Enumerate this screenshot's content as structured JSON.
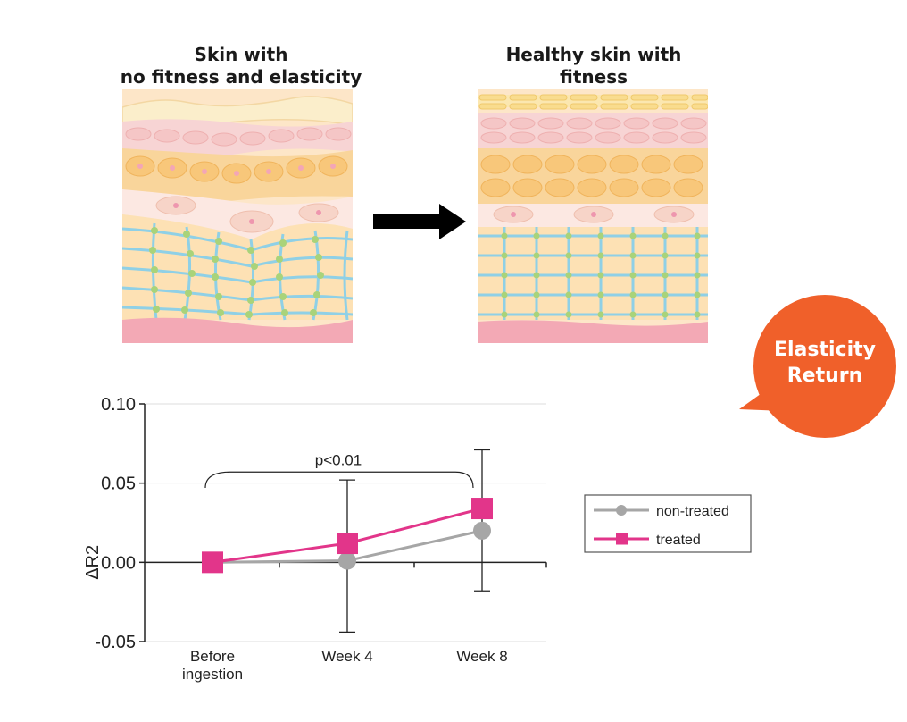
{
  "panels": {
    "left_caption": [
      "Skin with",
      "no fitness and elasticity"
    ],
    "right_caption": [
      "Healthy skin with",
      "fitness"
    ]
  },
  "badge": {
    "lines": [
      "Elasticity",
      "Return"
    ],
    "color": "#f0602a"
  },
  "colors": {
    "treated": "#e2358a",
    "non_treated": "#a6a6a6",
    "grid": "#dcdcdc"
  },
  "chart_data": {
    "type": "line",
    "categories": [
      [
        "Before",
        "ingestion"
      ],
      [
        "Week 4"
      ],
      [
        "Week 8"
      ]
    ],
    "ylabel": "ΔR2",
    "ylim": [
      -0.05,
      0.1
    ],
    "yticks": [
      "0.10",
      "0.05",
      "0.00",
      "-0.05"
    ],
    "ytick_values": [
      0.1,
      0.05,
      0.0,
      -0.05
    ],
    "series": [
      {
        "name": "non-treated",
        "marker": "circle",
        "values": [
          0.0,
          0.001,
          0.02
        ],
        "error_high": [
          null,
          0.052,
          0.071
        ],
        "error_low": [
          null,
          -0.044,
          -0.018
        ]
      },
      {
        "name": "treated",
        "marker": "square",
        "values": [
          0.0,
          0.012,
          0.034
        ]
      }
    ],
    "annotation": "p<0.01",
    "legend": "right",
    "grid": true
  }
}
